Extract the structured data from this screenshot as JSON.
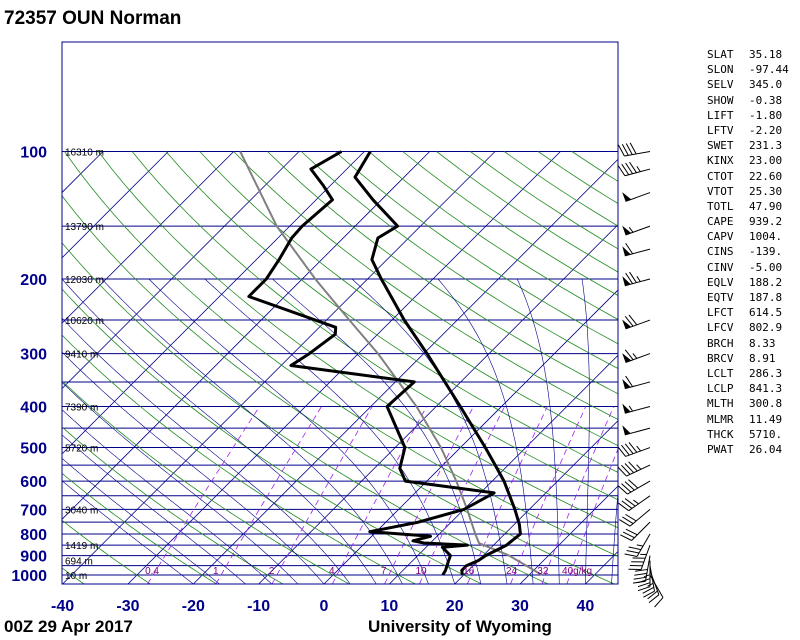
{
  "header": {
    "title": "72357 OUN Norman"
  },
  "footer": {
    "time": "00Z 29 Apr 2017",
    "source": "University of Wyoming"
  },
  "indices": [
    {
      "name": "SLAT",
      "value": "35.18"
    },
    {
      "name": "SLON",
      "value": "-97.44"
    },
    {
      "name": "SELV",
      "value": "345.0"
    },
    {
      "name": "SHOW",
      "value": "-0.38"
    },
    {
      "name": "LIFT",
      "value": "-1.80"
    },
    {
      "name": "LFTV",
      "value": "-2.20"
    },
    {
      "name": "SWET",
      "value": "231.3"
    },
    {
      "name": "KINX",
      "value": "23.00"
    },
    {
      "name": "CTOT",
      "value": "22.60"
    },
    {
      "name": "VTOT",
      "value": "25.30"
    },
    {
      "name": "TOTL",
      "value": "47.90"
    },
    {
      "name": "CAPE",
      "value": "939.2"
    },
    {
      "name": "CAPV",
      "value": "1004."
    },
    {
      "name": "CINS",
      "value": "-139."
    },
    {
      "name": "CINV",
      "value": "-5.00"
    },
    {
      "name": "EQLV",
      "value": "188.2"
    },
    {
      "name": "EQTV",
      "value": "187.8"
    },
    {
      "name": "LFCT",
      "value": "614.5"
    },
    {
      "name": "LFCV",
      "value": "802.9"
    },
    {
      "name": "BRCH",
      "value": "8.33"
    },
    {
      "name": "BRCV",
      "value": "8.91"
    },
    {
      "name": "LCLT",
      "value": "286.3"
    },
    {
      "name": "LCLP",
      "value": "841.3"
    },
    {
      "name": "MLTH",
      "value": "300.8"
    },
    {
      "name": "MLMR",
      "value": "11.49"
    },
    {
      "name": "THCK",
      "value": "5710."
    },
    {
      "name": "PWAT",
      "value": "26.04"
    }
  ],
  "colors": {
    "isobar": "#00008b",
    "isotherm": "#00008b",
    "dry_adiabat": "#228b22",
    "moist_adiabat": "#00008b",
    "mixing_ratio": "#a020f0",
    "temperature": "#000000",
    "dewpoint": "#000000",
    "parcel": "#808080"
  },
  "chart_data": {
    "type": "skew-t",
    "pressure_levels": [
      1000,
      900,
      800,
      700,
      600,
      500,
      400,
      300,
      200,
      100
    ],
    "pressure_labels": [
      "1000",
      "900",
      "800",
      "700",
      "600",
      "500",
      "400",
      "300",
      "200",
      "100"
    ],
    "temperature_ticks": [
      -40,
      -30,
      -20,
      -10,
      0,
      10,
      20,
      30,
      40
    ],
    "temperature_tick_labels": [
      "-40",
      "-30",
      "-20",
      "-10",
      "0",
      "10",
      "20",
      "30",
      "40"
    ],
    "height_labels": [
      {
        "p": 1000,
        "text": "10 m"
      },
      {
        "p": 925,
        "text": "694 m"
      },
      {
        "p": 850,
        "text": "1419 m"
      },
      {
        "p": 700,
        "text": "3040 m"
      },
      {
        "p": 500,
        "text": "5720 m"
      },
      {
        "p": 400,
        "text": "7390 m"
      },
      {
        "p": 300,
        "text": "9410 m"
      },
      {
        "p": 250,
        "text": "10620 m"
      },
      {
        "p": 200,
        "text": "12030 m"
      },
      {
        "p": 150,
        "text": "13790 m"
      },
      {
        "p": 100,
        "text": "16310 m"
      }
    ],
    "mixing_ratio_labels": [
      "0.4",
      "1",
      "2",
      "4",
      "7",
      "10",
      "16",
      "24",
      "32",
      "40g/kg"
    ],
    "temperature_profile": [
      {
        "p": 1000,
        "t": 19.8
      },
      {
        "p": 975,
        "t": 19.0
      },
      {
        "p": 950,
        "t": 19.0
      },
      {
        "p": 925,
        "t": 20.0
      },
      {
        "p": 900,
        "t": 20.4
      },
      {
        "p": 850,
        "t": 22.0
      },
      {
        "p": 825,
        "t": 22.2
      },
      {
        "p": 800,
        "t": 22.4
      },
      {
        "p": 760,
        "t": 20.8
      },
      {
        "p": 700,
        "t": 17.8
      },
      {
        "p": 600,
        "t": 11.8
      },
      {
        "p": 550,
        "t": 8.0
      },
      {
        "p": 500,
        "t": 3.8
      },
      {
        "p": 400,
        "t": -6.3
      },
      {
        "p": 300,
        "t": -19.5
      },
      {
        "p": 250,
        "t": -28.1
      },
      {
        "p": 200,
        "t": -37.9
      },
      {
        "p": 180,
        "t": -42.3
      },
      {
        "p": 160,
        "t": -44.7
      },
      {
        "p": 150,
        "t": -43.5
      },
      {
        "p": 130,
        "t": -51.3
      },
      {
        "p": 115,
        "t": -57.5
      },
      {
        "p": 100,
        "t": -59.1
      }
    ],
    "dewpoint_profile": [
      {
        "p": 1000,
        "t": 16.8
      },
      {
        "p": 975,
        "t": 16.5
      },
      {
        "p": 950,
        "t": 16.0
      },
      {
        "p": 925,
        "t": 15.5
      },
      {
        "p": 900,
        "t": 15.0
      },
      {
        "p": 860,
        "t": 12.5
      },
      {
        "p": 850,
        "t": 16.0
      },
      {
        "p": 840,
        "t": 9.0
      },
      {
        "p": 830,
        "t": 7.0
      },
      {
        "p": 810,
        "t": 9.0
      },
      {
        "p": 790,
        "t": -1.0
      },
      {
        "p": 750,
        "t": 5.0
      },
      {
        "p": 700,
        "t": 10.0
      },
      {
        "p": 640,
        "t": 12.1
      },
      {
        "p": 600,
        "t": -3.3
      },
      {
        "p": 560,
        "t": -6.1
      },
      {
        "p": 500,
        "t": -8.5
      },
      {
        "p": 400,
        "t": -17.5
      },
      {
        "p": 350,
        "t": -17.1
      },
      {
        "p": 320,
        "t": -38.5
      },
      {
        "p": 300,
        "t": -37.5
      },
      {
        "p": 270,
        "t": -36.5
      },
      {
        "p": 260,
        "t": -37.5
      },
      {
        "p": 220,
        "t": -55.5
      },
      {
        "p": 200,
        "t": -55.5
      },
      {
        "p": 180,
        "t": -56.5
      },
      {
        "p": 160,
        "t": -57.9
      },
      {
        "p": 150,
        "t": -58.1
      },
      {
        "p": 130,
        "t": -57.5
      },
      {
        "p": 120,
        "t": -61.2
      },
      {
        "p": 110,
        "t": -65.5
      },
      {
        "p": 100,
        "t": -63.5
      }
    ],
    "parcel_profile": [
      {
        "p": 1000,
        "t": 32.0
      },
      {
        "p": 900,
        "t": 24.0
      },
      {
        "p": 841.3,
        "t": 17.5
      },
      {
        "p": 800,
        "t": 15.5
      },
      {
        "p": 700,
        "t": 10.5
      },
      {
        "p": 600,
        "t": 4.5
      },
      {
        "p": 500,
        "t": -3.0
      },
      {
        "p": 400,
        "t": -13.0
      },
      {
        "p": 300,
        "t": -27.0
      },
      {
        "p": 250,
        "t": -36.5
      },
      {
        "p": 200,
        "t": -48.0
      },
      {
        "p": 150,
        "t": -62.0
      },
      {
        "p": 100,
        "t": -79.0
      }
    ],
    "wind_barbs": [
      {
        "p": 1000,
        "dir": 150,
        "spd": 10
      },
      {
        "p": 975,
        "dir": 160,
        "spd": 20
      },
      {
        "p": 950,
        "dir": 170,
        "spd": 25
      },
      {
        "p": 925,
        "dir": 180,
        "spd": 35
      },
      {
        "p": 900,
        "dir": 190,
        "spd": 40
      },
      {
        "p": 850,
        "dir": 200,
        "spd": 45
      },
      {
        "p": 800,
        "dir": 210,
        "spd": 35
      },
      {
        "p": 750,
        "dir": 225,
        "spd": 30
      },
      {
        "p": 700,
        "dir": 230,
        "spd": 30
      },
      {
        "p": 650,
        "dir": 235,
        "spd": 35
      },
      {
        "p": 600,
        "dir": 240,
        "spd": 40
      },
      {
        "p": 550,
        "dir": 245,
        "spd": 45
      },
      {
        "p": 500,
        "dir": 250,
        "spd": 45
      },
      {
        "p": 450,
        "dir": 255,
        "spd": 50
      },
      {
        "p": 400,
        "dir": 255,
        "spd": 55
      },
      {
        "p": 350,
        "dir": 255,
        "spd": 60
      },
      {
        "p": 300,
        "dir": 250,
        "spd": 65
      },
      {
        "p": 250,
        "dir": 250,
        "spd": 70
      },
      {
        "p": 200,
        "dir": 255,
        "spd": 75
      },
      {
        "p": 170,
        "dir": 255,
        "spd": 60
      },
      {
        "p": 150,
        "dir": 250,
        "spd": 55
      },
      {
        "p": 125,
        "dir": 250,
        "spd": 50
      },
      {
        "p": 110,
        "dir": 255,
        "spd": 45
      },
      {
        "p": 100,
        "dir": 260,
        "spd": 40
      }
    ],
    "ylim": [
      1050,
      100
    ],
    "xlim": [
      -40,
      45
    ],
    "grid": true
  }
}
